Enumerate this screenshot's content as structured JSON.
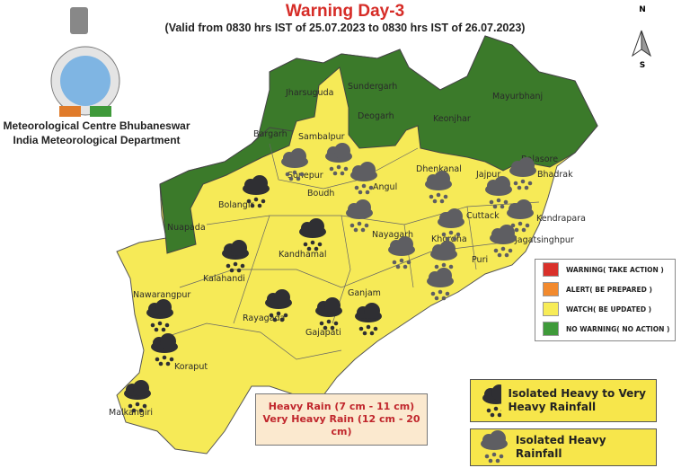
{
  "header": {
    "title": "Warning Day-3",
    "subtitle": "(Valid from 0830 hrs IST of 25.07.2023 to 0830 hrs IST of 26.07.2023)",
    "org_line1": "Meteorological Centre Bhubaneswar",
    "org_line2": "India Meteorological Department"
  },
  "compass": {
    "north": "N",
    "south": "S"
  },
  "colors": {
    "warning": "#d9312b",
    "alert": "#f28a2e",
    "watch": "#f7ec57",
    "no_warning": "#3f9a3a",
    "map_green": "#3b7a2a",
    "map_yellow": "#f6ea57"
  },
  "districts": {
    "sundergarh": "Sundergarh",
    "jharsuguda": "Jharsuguda",
    "deogarh": "Deogarh",
    "keonjhar": "Keonjhar",
    "mayurbhanj": "Mayurbhanj",
    "balasore": "Balasore",
    "bargarh": "Bargarh",
    "sambalpur": "Sambalpur",
    "sonepur": "Sonepur",
    "angul": "Angul",
    "dhenkanal": "Dhenkanal",
    "jajpur": "Jajpur",
    "bhadrak": "Bhadrak",
    "bolangir": "Bolangir",
    "boudh": "Boudh",
    "cuttack": "Cuttack",
    "kendrapara": "Kendrapara",
    "nuapada": "Nuapada",
    "nayagarh": "Nayagarh",
    "khordha": "Khordha",
    "jagatsinghpur": "Jagatsinghpur",
    "kandhamal": "Kandhamal",
    "puri": "Puri",
    "kalahandi": "Kalahandi",
    "ganjam": "Ganjam",
    "nawarangpur": "Nawarangpur",
    "rayagada": "Rayagada",
    "gajapati": "Gajapati",
    "koraput": "Koraput",
    "malkangiri": "Malkangiri"
  },
  "legend": {
    "items": [
      {
        "label": "WARNING( TAKE ACTION )",
        "color": "#d9312b"
      },
      {
        "label": "ALERT( BE PREPARED )",
        "color": "#f28a2e"
      },
      {
        "label": "WATCH( BE UPDATED )",
        "color": "#f7ec57"
      },
      {
        "label": "NO WARNING( NO ACTION )",
        "color": "#3f9a3a"
      }
    ]
  },
  "rain_scale": {
    "heavy": "Heavy Rain (7 cm - 11 cm)",
    "very_heavy": "Very Heavy Rain (12 cm - 20 cm)"
  },
  "icon_legend": {
    "very_heavy": {
      "label": "Isolated Heavy to Very Heavy Rainfall",
      "icon": "dark-rain-cloud-icon"
    },
    "heavy": {
      "label": "Isolated Heavy Rainfall",
      "icon": "grey-rain-cloud-icon"
    }
  }
}
